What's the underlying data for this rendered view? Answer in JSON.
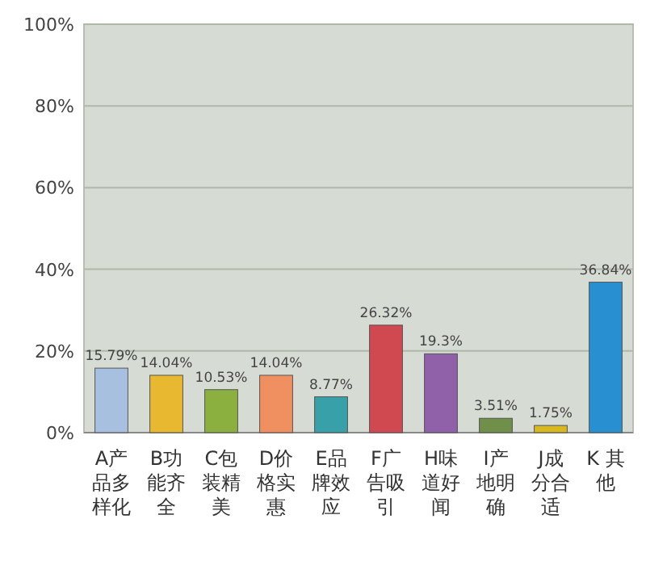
{
  "chart_data": {
    "type": "bar",
    "categories": [
      "A产品多样化",
      "B功能齐全",
      "C包装精美",
      "D价格实惠",
      "E品牌效应",
      "F广告吸引",
      "H味道好闻",
      "I产地明确",
      "J成分合适",
      "K 其他"
    ],
    "values": [
      15.79,
      14.04,
      10.53,
      14.04,
      8.77,
      26.32,
      19.3,
      3.51,
      1.75,
      36.84
    ],
    "value_labels": [
      "15.79%",
      "14.04%",
      "10.53%",
      "14.04%",
      "8.77%",
      "26.32%",
      "19.3%",
      "3.51%",
      "1.75%",
      "36.84%"
    ],
    "colors": [
      "#a8c0e0",
      "#e8b830",
      "#8cb040",
      "#f09060",
      "#38a0a8",
      "#d04850",
      "#9060a8",
      "#70904a",
      "#d8b820",
      "#2890d0"
    ],
    "ylim": [
      0,
      100
    ],
    "yticks": [
      {
        "value": 0,
        "label": "0%"
      },
      {
        "value": 20,
        "label": "20%"
      },
      {
        "value": 40,
        "label": "40%"
      },
      {
        "value": 60,
        "label": "60%"
      },
      {
        "value": 80,
        "label": "80%"
      },
      {
        "value": 100,
        "label": "100%"
      }
    ],
    "grid": "y"
  }
}
